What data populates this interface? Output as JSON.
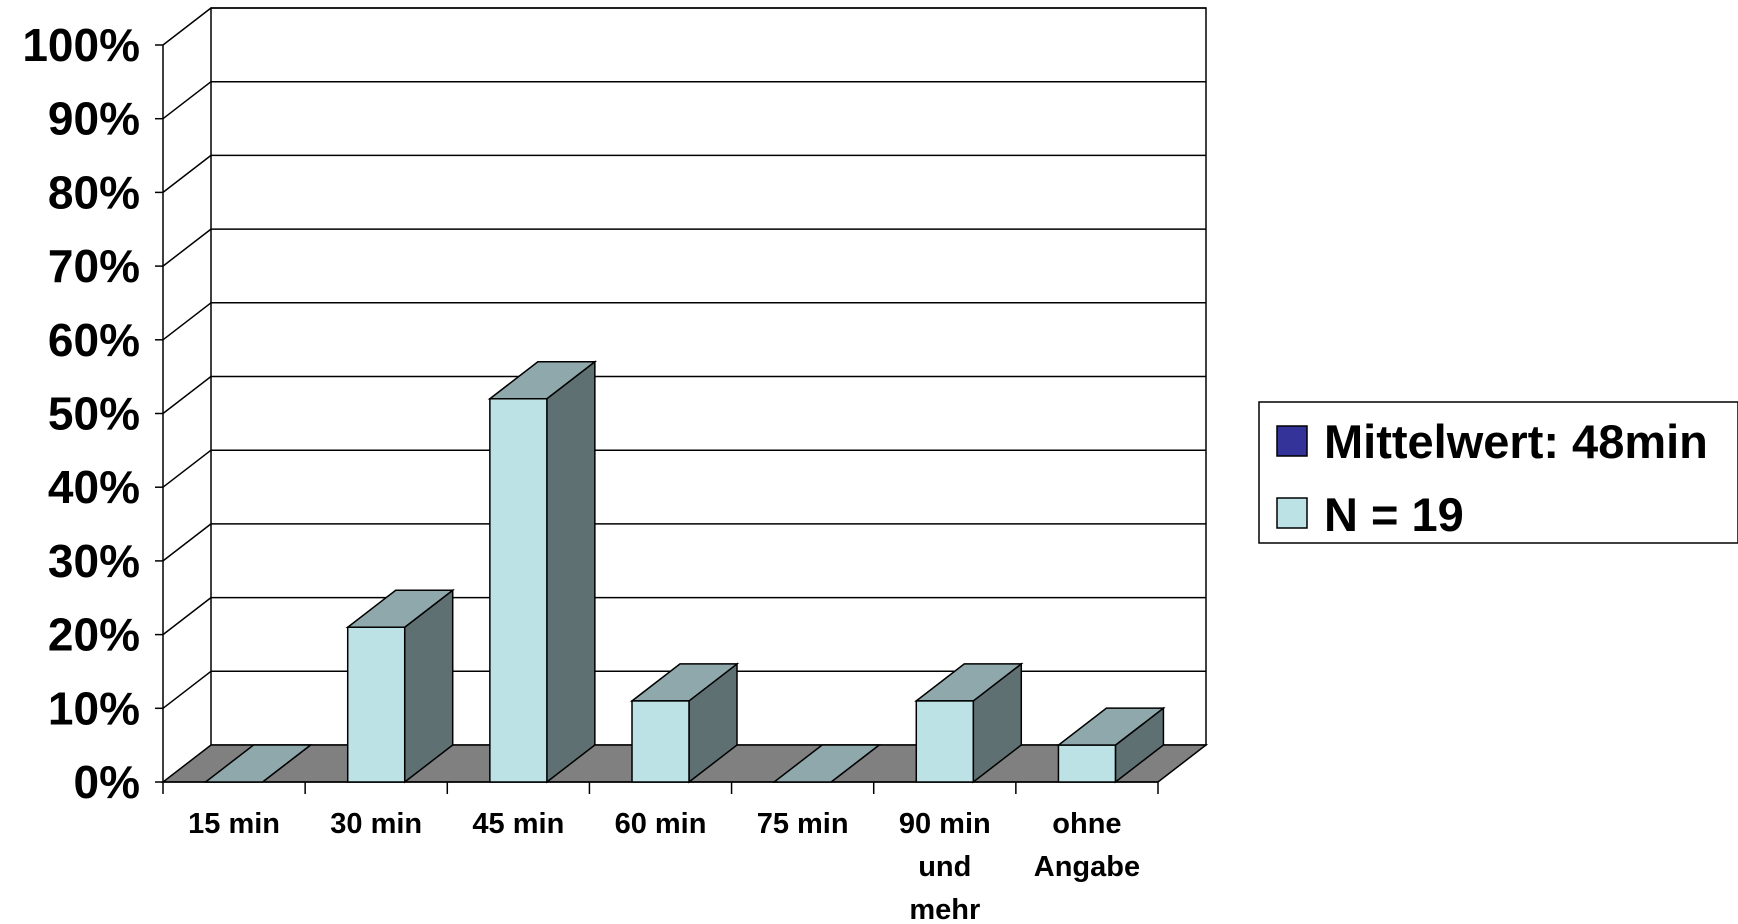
{
  "chart_data": {
    "type": "bar",
    "categories": [
      [
        "15 min"
      ],
      [
        "30 min"
      ],
      [
        "45 min"
      ],
      [
        "60 min"
      ],
      [
        "75 min"
      ],
      [
        "90 min",
        "und",
        "mehr"
      ],
      [
        "ohne",
        "Angabe"
      ]
    ],
    "series": [
      {
        "name": "N = 19",
        "values": [
          0,
          21,
          52,
          11,
          0,
          11,
          5
        ],
        "color": "#bde2e6"
      }
    ],
    "ylim": [
      0,
      100
    ],
    "yticks": [
      "0%",
      "10%",
      "20%",
      "30%",
      "40%",
      "50%",
      "60%",
      "70%",
      "80%",
      "90%",
      "100%"
    ],
    "grid": true,
    "three_d": true,
    "colors": {
      "bar_front": "#bde2e6",
      "bar_top": "#8fa8ab",
      "bar_side": "#5e7072",
      "floor": "#808080"
    },
    "legend": {
      "placement": "right",
      "entries": [
        {
          "label": "Mittelwert: 48min",
          "color": "#333399"
        },
        {
          "label": "N = 19",
          "color": "#bde2e6"
        }
      ]
    }
  }
}
